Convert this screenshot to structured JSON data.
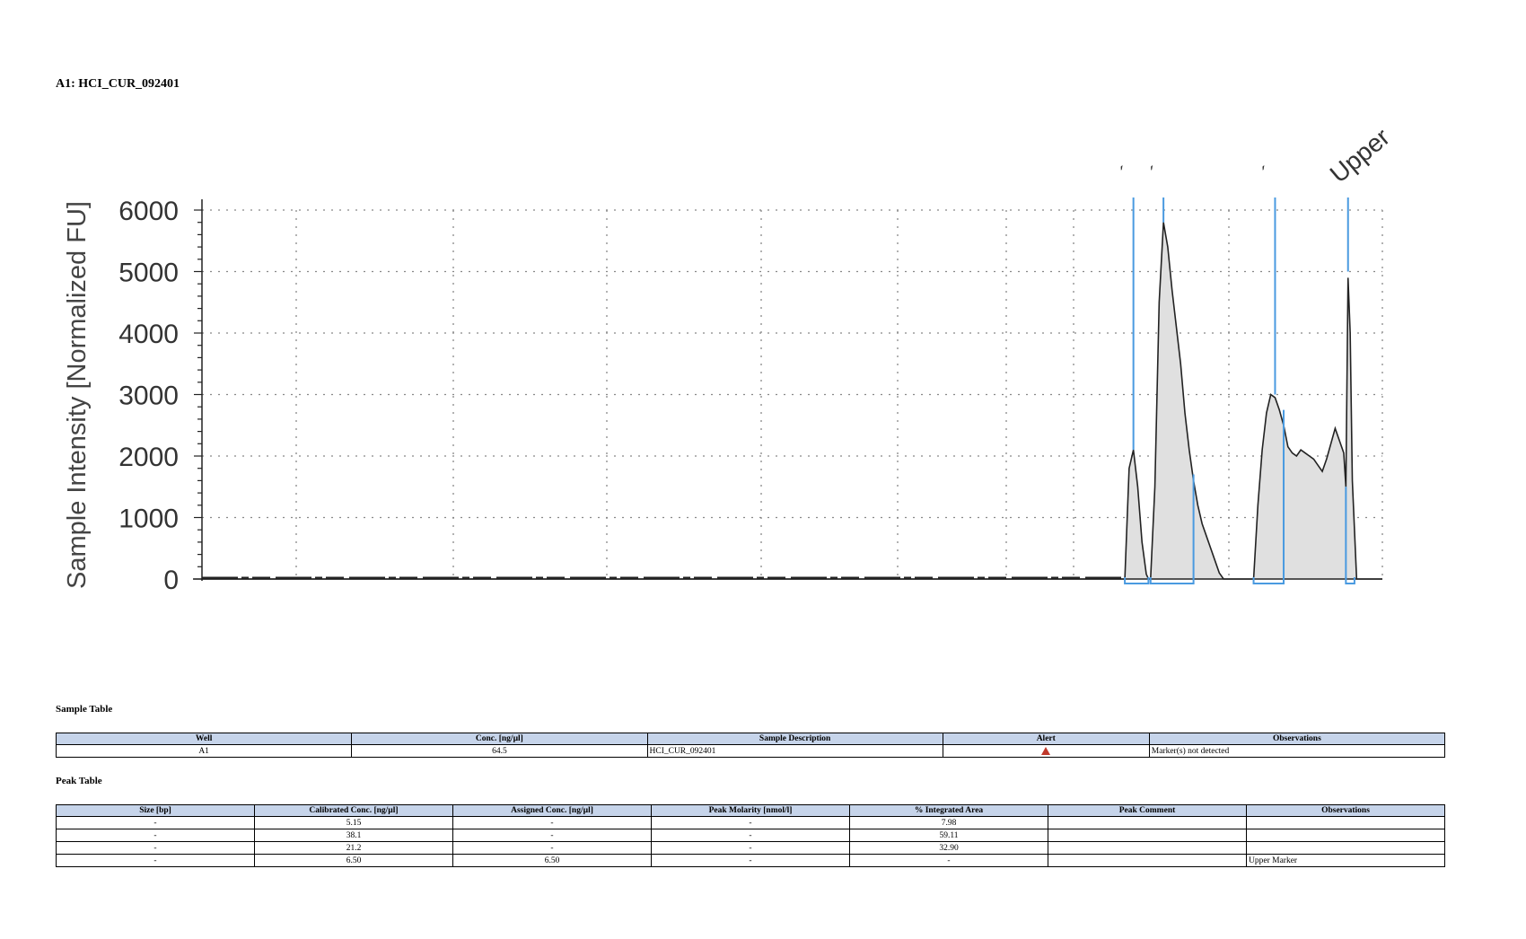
{
  "title": "A1: HCI_CUR_092401",
  "chart_data": {
    "type": "area",
    "title": "",
    "xlabel": "",
    "ylabel": "Sample Intensity [Normalized FU]",
    "ylim": [
      0,
      6000
    ],
    "yticks": [
      0,
      1000,
      2000,
      3000,
      4000,
      5000,
      6000
    ],
    "grid": true,
    "fill_color": "#e0e0e0",
    "line_color": "#222222",
    "marker_color": "#4a9ae0",
    "trace": [
      [
        0,
        0
      ],
      [
        430,
        0
      ],
      [
        432,
        1800
      ],
      [
        434,
        2100
      ],
      [
        436,
        1500
      ],
      [
        438,
        600
      ],
      [
        440,
        80
      ],
      [
        441,
        0
      ],
      [
        442,
        0
      ],
      [
        444,
        1500
      ],
      [
        446,
        4500
      ],
      [
        448,
        5800
      ],
      [
        450,
        5400
      ],
      [
        452,
        4700
      ],
      [
        454,
        4100
      ],
      [
        456,
        3500
      ],
      [
        458,
        2700
      ],
      [
        460,
        2100
      ],
      [
        462,
        1600
      ],
      [
        464,
        1200
      ],
      [
        466,
        900
      ],
      [
        468,
        700
      ],
      [
        470,
        500
      ],
      [
        472,
        300
      ],
      [
        474,
        100
      ],
      [
        476,
        0
      ],
      [
        490,
        0
      ],
      [
        492,
        1200
      ],
      [
        494,
        2100
      ],
      [
        496,
        2700
      ],
      [
        498,
        3000
      ],
      [
        500,
        2950
      ],
      [
        502,
        2750
      ],
      [
        504,
        2500
      ],
      [
        506,
        2150
      ],
      [
        508,
        2050
      ],
      [
        510,
        2000
      ],
      [
        512,
        2100
      ],
      [
        514,
        2050
      ],
      [
        516,
        2000
      ],
      [
        518,
        1950
      ],
      [
        520,
        1850
      ],
      [
        522,
        1750
      ],
      [
        524,
        1950
      ],
      [
        526,
        2200
      ],
      [
        528,
        2450
      ],
      [
        530,
        2250
      ],
      [
        532,
        2050
      ],
      [
        533,
        1500
      ],
      [
        534,
        4900
      ],
      [
        535,
        4000
      ],
      [
        536,
        1600
      ],
      [
        538,
        0
      ],
      [
        550,
        0
      ]
    ],
    "peak_markers": [
      {
        "x": 434,
        "label": "´"
      },
      {
        "x": 448,
        "label": "´"
      },
      {
        "x": 500,
        "label": "´"
      },
      {
        "x": 534,
        "label": "Upper"
      }
    ],
    "peak_regions": [
      [
        430,
        441
      ],
      [
        442,
        462
      ],
      [
        490,
        504
      ],
      [
        533,
        537
      ]
    ]
  },
  "sample_table": {
    "title": "Sample Table",
    "headers": [
      "Well",
      "Conc. [ng/µl]",
      "Sample Description",
      "Alert",
      "Observations"
    ],
    "rows": [
      {
        "well": "A1",
        "conc": "64.5",
        "description": "HCI_CUR_092401",
        "alert_icon": "warning-triangle-icon",
        "observations": "Marker(s) not detected"
      }
    ]
  },
  "peak_table": {
    "title": "Peak Table",
    "headers": [
      "Size [bp]",
      "Calibrated Conc. [ng/µl]",
      "Assigned Conc. [ng/µl]",
      "Peak Molarity [nmol/l]",
      "% Integrated Area",
      "Peak Comment",
      "Observations"
    ],
    "rows": [
      [
        "-",
        "5.15",
        "-",
        "-",
        "7.98",
        "",
        ""
      ],
      [
        "-",
        "38.1",
        "-",
        "-",
        "59.11",
        "",
        ""
      ],
      [
        "-",
        "21.2",
        "-",
        "-",
        "32.90",
        "",
        ""
      ],
      [
        "-",
        "6.50",
        "6.50",
        "-",
        "-",
        "",
        "Upper Marker"
      ]
    ]
  }
}
